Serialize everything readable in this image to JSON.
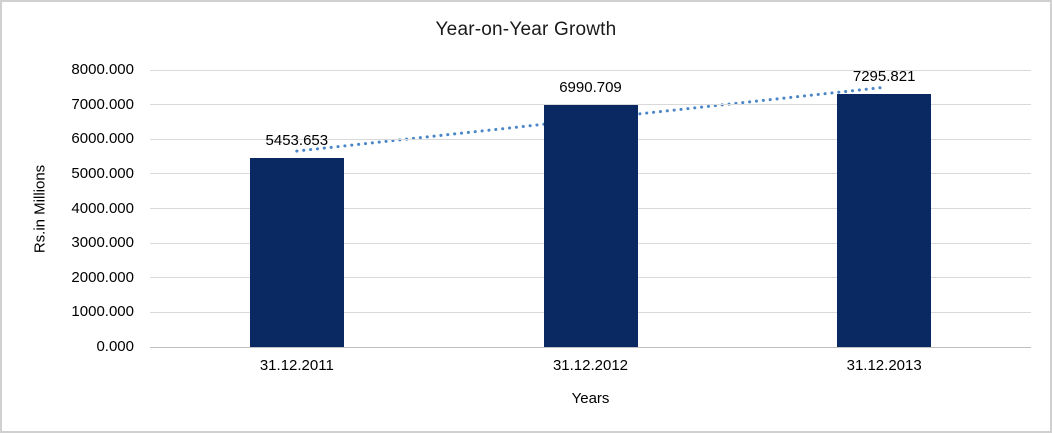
{
  "chart_data": {
    "type": "bar",
    "title": "Year-on-Year Growth",
    "xlabel": "Years",
    "ylabel": "Rs.in Millions",
    "categories": [
      "31.12.2011",
      "31.12.2012",
      "31.12.2013"
    ],
    "values": [
      5453.653,
      6990.709,
      7295.821
    ],
    "data_labels": [
      "5453.653",
      "6990.709",
      "7295.821"
    ],
    "ylim": [
      0,
      8000
    ],
    "ytick_step": 1000,
    "ytick_decimals": 3,
    "grid": "horizontal",
    "legend_position": "none",
    "bar_color": "#0a2862",
    "gridline_color": "#d9d9d9",
    "axis_line_color": "#bfbfbf",
    "trendline": {
      "type": "linear",
      "style": "dotted",
      "color": "#4a86c8"
    }
  }
}
